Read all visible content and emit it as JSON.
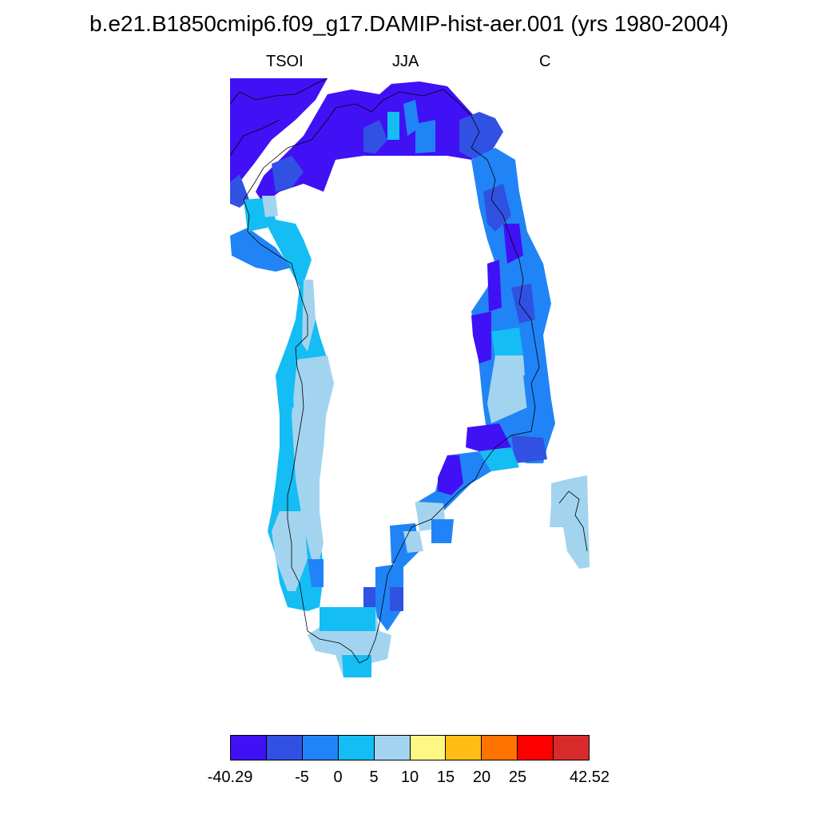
{
  "title": "b.e21.B1850cmip6.f09_g17.DAMIP-hist-aer.001 (yrs 1980-2004)",
  "subtitles": {
    "left": "TSOI",
    "center": "JJA",
    "right": "C"
  },
  "colorbar": {
    "colors": [
      "#4111f5",
      "#3151e3",
      "#2184f6",
      "#14bdf4",
      "#a3d4ef",
      "#fff783",
      "#ffbd15",
      "#ff7400",
      "#ff0000",
      "#d72b2b"
    ],
    "labels": [
      "-40.29",
      "-5",
      "0",
      "5",
      "10",
      "15",
      "20",
      "25",
      "42.52"
    ]
  }
}
